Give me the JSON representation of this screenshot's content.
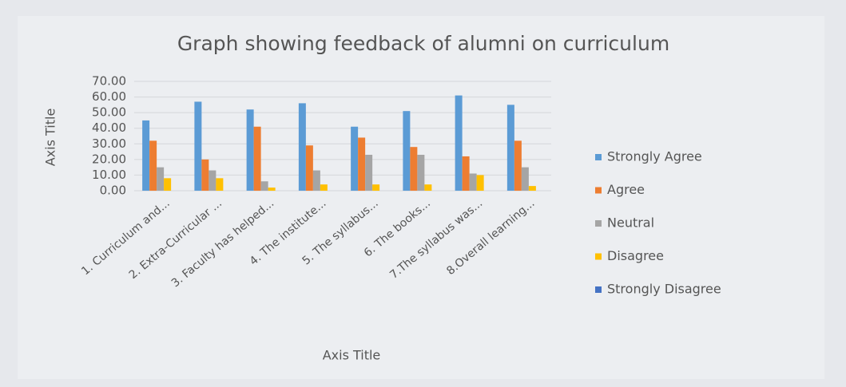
{
  "chart_data": {
    "type": "bar",
    "title": "Graph showing feedback of alumni on curriculum",
    "x_label": "Axis Title",
    "y_label": "Axis Title",
    "categories": [
      "1. Curriculum and...",
      "2. Extra-Curricular ...",
      "3. Faculty has helped...",
      "4. The institute...",
      "5. The syllabus...",
      "6. The books...",
      "7.The syllabus was...",
      "8.Overall learning..."
    ],
    "series": [
      {
        "name": "Strongly Agree",
        "color": "#5b9bd5",
        "values": [
          45,
          57,
          52,
          56,
          41,
          51,
          61,
          55
        ]
      },
      {
        "name": "Agree",
        "color": "#ed7d31",
        "values": [
          32,
          20,
          41,
          29,
          34,
          28,
          22,
          32
        ]
      },
      {
        "name": "Neutral",
        "color": "#a5a5a5",
        "values": [
          15,
          13,
          6,
          13,
          23,
          23,
          11,
          15
        ]
      },
      {
        "name": "Disagree",
        "color": "#ffc000",
        "values": [
          8,
          8,
          2,
          4,
          4,
          4,
          10,
          3
        ]
      },
      {
        "name": "Strongly Disagree",
        "color": "#4472c4",
        "values": [
          0,
          0,
          0,
          0,
          0,
          0,
          0,
          0
        ]
      }
    ],
    "ylim": [
      0,
      70
    ],
    "yticks": [
      {
        "value": 0,
        "label": "0.00"
      },
      {
        "value": 10,
        "label": "10.00"
      },
      {
        "value": 20,
        "label": "20.00"
      },
      {
        "value": 30,
        "label": "30.00"
      },
      {
        "value": 40,
        "label": "40.00"
      },
      {
        "value": 50,
        "label": "50.00"
      },
      {
        "value": 60,
        "label": "60.00"
      },
      {
        "value": 70,
        "label": "70.00"
      }
    ],
    "grid": true,
    "legend": "right"
  }
}
